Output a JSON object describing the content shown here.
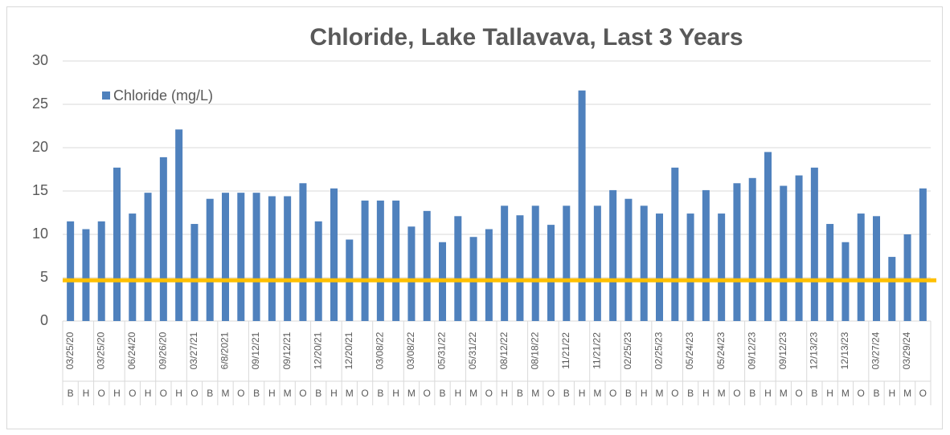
{
  "chart_data": {
    "type": "bar",
    "title": "Chloride, Lake Tallavava, Last 3 Years",
    "categories": [
      "03/25/20",
      null,
      "03/25/20",
      null,
      "06/24/20",
      null,
      "09/26/20",
      null,
      "03/27/21",
      null,
      "6/8/2021",
      null,
      "09/12/21",
      null,
      "09/12/21",
      null,
      "12/20/21",
      null,
      "12/20/21",
      null,
      "03/08/22",
      null,
      "03/08/22",
      null,
      "05/31/22",
      null,
      "05/31/22",
      null,
      "08/12/22",
      null,
      "08/18/22",
      null,
      "11/21/22",
      null,
      "11/21/22",
      null,
      "02/25/23",
      null,
      "02/25/23",
      null,
      "05/24/23",
      null,
      "05/24/23",
      null,
      "09/12/23",
      null,
      "09/12/23",
      null,
      "12/13/23",
      null,
      "12/13/23",
      null,
      "03/27/24",
      null,
      "03/29/24",
      null
    ],
    "sub_categories": [
      "B",
      "H",
      "O",
      "H",
      "O",
      "H",
      "O",
      "H",
      "O",
      "B",
      "M",
      "O",
      "B",
      "H",
      "M",
      "O",
      "B",
      "H",
      "M",
      "O",
      "B",
      "H",
      "M",
      "O",
      "B",
      "H",
      "M",
      "O",
      "H",
      "B",
      "M",
      "O",
      "B",
      "H",
      "M",
      "O",
      "B",
      "H",
      "M",
      "O",
      "B",
      "H",
      "M",
      "O",
      "B",
      "H",
      "M",
      "O",
      "B",
      "H",
      "M",
      "O",
      "B",
      "H",
      "M",
      "O"
    ],
    "series": [
      {
        "name": "Chloride (mg/L)",
        "color": "#4f81bd",
        "values": [
          11.5,
          10.6,
          11.5,
          17.7,
          12.4,
          14.8,
          18.9,
          22.1,
          11.2,
          14.1,
          14.8,
          14.8,
          14.8,
          14.4,
          14.4,
          15.9,
          11.5,
          15.3,
          9.4,
          13.9,
          13.9,
          13.9,
          10.9,
          12.7,
          9.1,
          12.1,
          9.7,
          10.6,
          13.3,
          12.2,
          13.3,
          11.1,
          13.3,
          26.6,
          13.3,
          15.1,
          14.1,
          13.3,
          12.4,
          17.7,
          12.4,
          15.1,
          12.4,
          15.9,
          16.5,
          19.5,
          15.6,
          16.8,
          17.7,
          11.2,
          9.1,
          12.4,
          12.1,
          7.4,
          10.0,
          15.3
        ]
      }
    ],
    "reference_line": {
      "value": 4.7,
      "color": "#ffc000"
    },
    "ylim": [
      0,
      30
    ],
    "yticks": [
      0,
      5,
      10,
      15,
      20,
      25,
      30
    ],
    "grid": true,
    "legend": "top-left"
  }
}
